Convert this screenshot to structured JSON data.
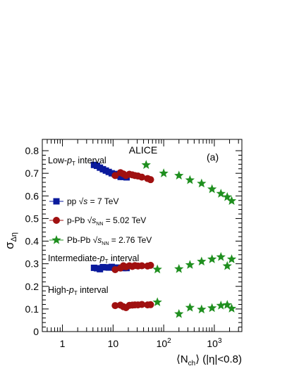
{
  "chart_data": {
    "type": "scatter",
    "experiment": "ALICE",
    "panel": "(a)",
    "ylabel": "σ",
    "ylabel_sub": "Δη",
    "xlabel_parts": [
      "⟨N",
      "ch",
      "⟩ (|η|<0.8)"
    ],
    "x_scale": "log",
    "xlim": [
      0.4,
      3500
    ],
    "ylim": [
      0,
      0.85
    ],
    "x_ticks": [
      {
        "value": 1,
        "base": "1",
        "sup": ""
      },
      {
        "value": 10,
        "base": "10",
        "sup": ""
      },
      {
        "value": 100,
        "base": "10",
        "sup": "2"
      },
      {
        "value": 1000,
        "base": "10",
        "sup": "3"
      }
    ],
    "y_ticks": [
      "0",
      "0.1",
      "0.2",
      "0.3",
      "0.4",
      "0.5",
      "0.6",
      "0.7",
      "0.8"
    ],
    "interval_labels": [
      {
        "prefix": "Low-",
        "p": "p",
        "sub": "T",
        "suffix": " interval"
      },
      {
        "prefix": "Intermediate-",
        "p": "p",
        "sub": "T",
        "suffix": " interval"
      },
      {
        "prefix": "High-",
        "p": "p",
        "sub": "T",
        "suffix": " interval"
      }
    ],
    "legend": [
      {
        "name": "pp",
        "energy_pre": "√",
        "energy_var": "s",
        "energy_sub": "",
        "energy_post": " = 7 TeV",
        "marker": "square",
        "color": "#0a1a9c"
      },
      {
        "name": "p-Pb",
        "energy_pre": "√",
        "energy_var": "s",
        "energy_sub": "NN",
        "energy_post": " = 5.02 TeV",
        "marker": "circle",
        "color": "#a01010"
      },
      {
        "name": "Pb-Pb",
        "energy_pre": "√",
        "energy_var": "s",
        "energy_sub": "NN",
        "energy_post": " = 2.76 TeV",
        "marker": "star",
        "color": "#1f8f1f"
      }
    ],
    "series": [
      {
        "name": "pp",
        "marker": "square",
        "color": "#0a1a9c",
        "points": [
          [
            4.2,
            0.737
          ],
          [
            4.8,
            0.733
          ],
          [
            5.5,
            0.725
          ],
          [
            6.3,
            0.718
          ],
          [
            7.2,
            0.712
          ],
          [
            8.2,
            0.706
          ],
          [
            9.4,
            0.7
          ],
          [
            10.8,
            0.697
          ],
          [
            12.3,
            0.69
          ],
          [
            14.1,
            0.684
          ],
          [
            16.0,
            0.684
          ],
          [
            18.5,
            0.682
          ],
          [
            4.2,
            0.282
          ],
          [
            4.8,
            0.28
          ],
          [
            5.5,
            0.276
          ],
          [
            6.3,
            0.285
          ],
          [
            7.2,
            0.284
          ],
          [
            8.2,
            0.283
          ],
          [
            9.4,
            0.286
          ],
          [
            10.8,
            0.282
          ],
          [
            12.3,
            0.283
          ],
          [
            14.1,
            0.282
          ],
          [
            16.0,
            0.281
          ],
          [
            18.5,
            0.281
          ]
        ]
      },
      {
        "name": "p-Pb",
        "marker": "circle",
        "color": "#a01010",
        "points": [
          [
            11,
            0.69
          ],
          [
            14,
            0.703
          ],
          [
            16,
            0.697
          ],
          [
            18,
            0.69
          ],
          [
            21,
            0.696
          ],
          [
            24,
            0.693
          ],
          [
            27,
            0.69
          ],
          [
            31,
            0.688
          ],
          [
            37,
            0.683
          ],
          [
            48,
            0.677
          ],
          [
            55,
            0.672
          ],
          [
            11,
            0.274
          ],
          [
            14,
            0.281
          ],
          [
            16,
            0.291
          ],
          [
            18,
            0.286
          ],
          [
            21,
            0.291
          ],
          [
            24,
            0.288
          ],
          [
            27,
            0.292
          ],
          [
            31,
            0.29
          ],
          [
            37,
            0.291
          ],
          [
            48,
            0.29
          ],
          [
            55,
            0.293
          ],
          [
            11,
            0.115
          ],
          [
            14,
            0.117
          ],
          [
            16,
            0.11
          ],
          [
            18,
            0.106
          ],
          [
            21,
            0.116
          ],
          [
            24,
            0.117
          ],
          [
            27,
            0.118
          ],
          [
            31,
            0.118
          ],
          [
            37,
            0.12
          ],
          [
            48,
            0.118
          ],
          [
            55,
            0.119
          ]
        ]
      },
      {
        "name": "Pb-Pb",
        "marker": "star",
        "color": "#1f8f1f",
        "points": [
          [
            45,
            0.737
          ],
          [
            100,
            0.7
          ],
          [
            200,
            0.69
          ],
          [
            330,
            0.67
          ],
          [
            560,
            0.655
          ],
          [
            900,
            0.63
          ],
          [
            1350,
            0.61
          ],
          [
            1800,
            0.595
          ],
          [
            2200,
            0.578
          ],
          [
            75,
            0.275
          ],
          [
            200,
            0.277
          ],
          [
            330,
            0.295
          ],
          [
            560,
            0.31
          ],
          [
            900,
            0.32
          ],
          [
            1350,
            0.33
          ],
          [
            1800,
            0.29
          ],
          [
            2200,
            0.32
          ],
          [
            75,
            0.13
          ],
          [
            200,
            0.078
          ],
          [
            330,
            0.106
          ],
          [
            560,
            0.098
          ],
          [
            900,
            0.104
          ],
          [
            1350,
            0.115
          ],
          [
            1800,
            0.118
          ],
          [
            2200,
            0.102
          ]
        ]
      }
    ]
  }
}
